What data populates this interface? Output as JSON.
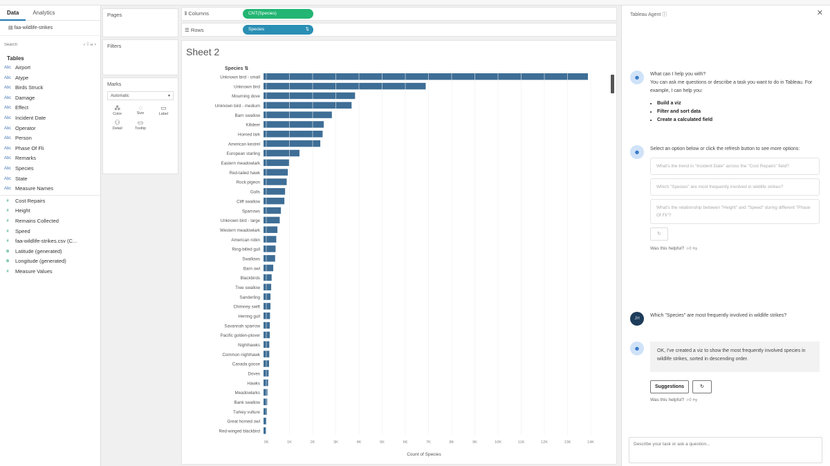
{
  "left_panel": {
    "tabs": [
      "Data",
      "Analytics"
    ],
    "datasource": "faa-wildlife-strikes",
    "search_placeholder": "Search",
    "tables_heading": "Tables",
    "dimensions": [
      "Airport",
      "Atype",
      "Birds Struck",
      "Damage",
      "Effect",
      "Incident Date",
      "Operator",
      "Person",
      "Phase Of Fli",
      "Remarks",
      "Species",
      "State",
      "Measure Names"
    ],
    "measures": [
      "Cost Repairs",
      "Height",
      "Remains Collected",
      "Speed",
      "faa-wildlife-strikes.csv (C...",
      "Latitude (generated)",
      "Longitude (generated)",
      "Measure Values"
    ]
  },
  "cards": {
    "pages": "Pages",
    "filters": "Filters",
    "marks": "Marks",
    "mark_type": "Automatic",
    "mark_buttons": [
      "Color",
      "Size",
      "Label",
      "Detail",
      "Tooltip"
    ]
  },
  "shelves": {
    "columns_label": "Columns",
    "columns_pill": "CNT(Species)",
    "rows_label": "Rows",
    "rows_pill": "Species"
  },
  "sheet": {
    "title": "Sheet 2"
  },
  "chart_data": {
    "type": "bar",
    "orientation": "horizontal",
    "row_header": "Species",
    "xlabel": "Count of Species",
    "xlim": [
      0,
      14500
    ],
    "x_ticks": [
      "0K",
      "1K",
      "2K",
      "3K",
      "4K",
      "5K",
      "6K",
      "7K",
      "8K",
      "9K",
      "10K",
      "11K",
      "12K",
      "13K",
      "14K"
    ],
    "bar_color": "#3e6e96",
    "categories": [
      "Unknown bird - small",
      "Unknown bird",
      "Mourning dove",
      "Unknown bird - medium",
      "Barn swallow",
      "Killdeer",
      "Horned lark",
      "American kestrel",
      "European starling",
      "Eastern meadowlark",
      "Red-tailed hawk",
      "Rock pigeon",
      "Gulls",
      "Cliff swallow",
      "Sparrows",
      "Unknown bird - large",
      "Western meadowlark",
      "American robin",
      "Ring-billed gull",
      "Swallows",
      "Barn owl",
      "Blackbirds",
      "Tree swallow",
      "Sanderling",
      "Chimney swift",
      "Herring gull",
      "Savannah sparrow",
      "Pacific golden-plover",
      "Nighthawks",
      "Common nighthawk",
      "Canada goose",
      "Doves",
      "Hawks",
      "Meadowlarks",
      "Bank swallow",
      "Turkey vulture",
      "Great horned owl",
      "Red-winged blackbird"
    ],
    "values": [
      14000,
      7000,
      3950,
      3800,
      2950,
      2600,
      2550,
      2450,
      1550,
      1100,
      1050,
      1000,
      930,
      900,
      750,
      700,
      600,
      550,
      520,
      500,
      420,
      350,
      330,
      300,
      300,
      280,
      270,
      270,
      250,
      250,
      240,
      220,
      200,
      170,
      160,
      150,
      120,
      100
    ]
  },
  "agent": {
    "title": "Tableau Agent ⓘ",
    "intro_title": "What can I help you with?",
    "intro_text": "You can ask me questions or describe a task you want to do in Tableau. For example, I can help you:",
    "intro_bullets": [
      "Build a viz",
      "Filter and sort data",
      "Create a calculated field"
    ],
    "select_text": "Select an option below or click the refresh button to see more options:",
    "suggestions": [
      "What's the trend in \"Incident Date\" across the \"Cost Repairs\" field?",
      "Which \"Species\" are most frequently involved in wildlife strikes?",
      "What's the relationship between \"Height\" and \"Speed\" during different \"Phase Of Fli\"?"
    ],
    "helpful": "Was this helpful?",
    "user_initials": "JH",
    "user_msg": "Which \"Species\" are most frequently involved in wildlife strikes?",
    "reply": "OK, I've created a viz to show the most frequently involved species in wildlife strikes, sorted in descending order.",
    "suggestions_btn": "Suggestions",
    "input_placeholder": "Describe your task or ask a question..."
  }
}
